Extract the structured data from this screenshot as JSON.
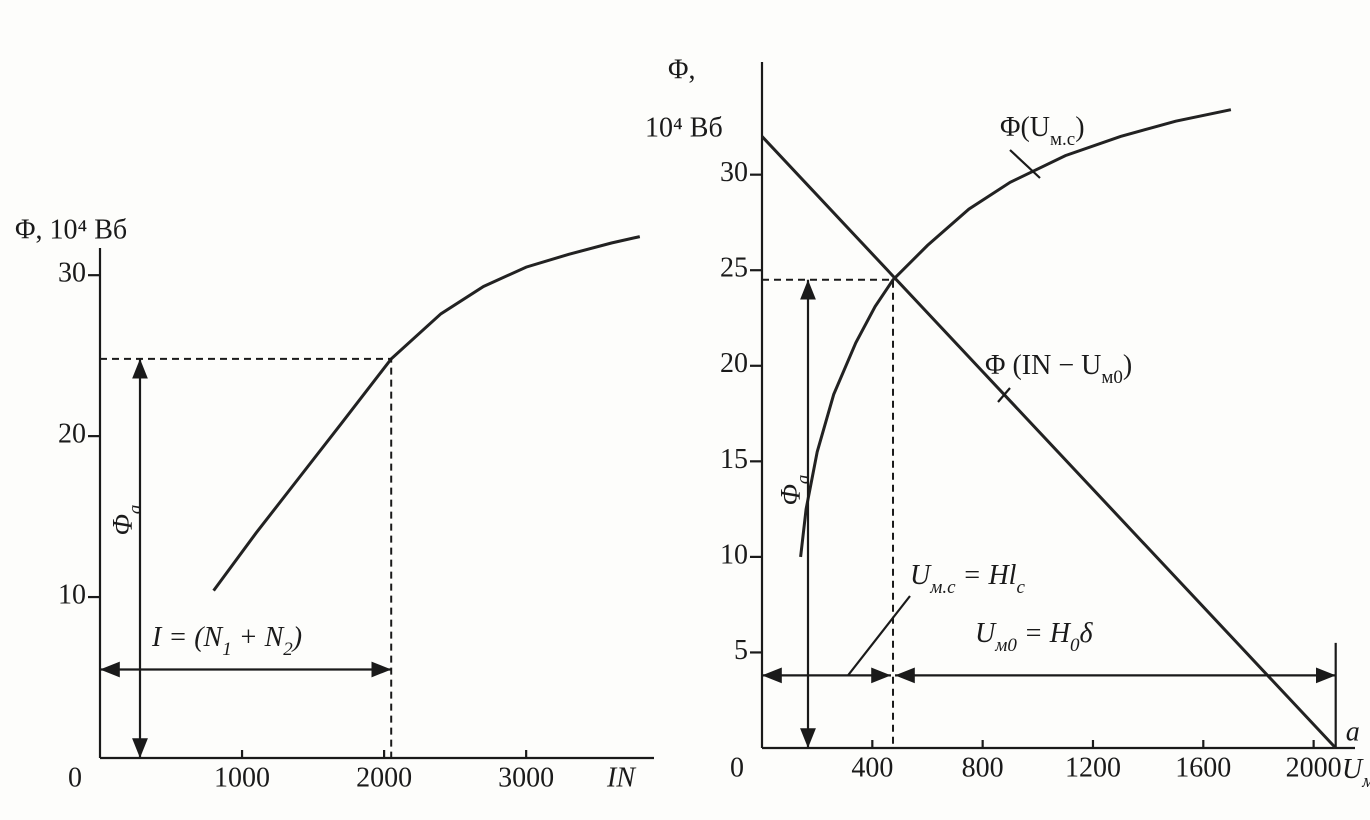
{
  "chart_data": [
    {
      "type": "line",
      "ylabel": "Φ, 10⁴ Вб",
      "xlabel": "IN",
      "xlim": [
        0,
        3900
      ],
      "xticks": [
        0,
        1000,
        2000,
        3000
      ],
      "ylim": [
        0,
        32
      ],
      "yticks": [
        10,
        20,
        30
      ],
      "series": [
        {
          "color": "#222222",
          "x": [
            800,
            1100,
            1400,
            1700,
            2050,
            2400,
            2700,
            3000,
            3300,
            3600,
            3800
          ],
          "values": [
            10.4,
            14,
            17.4,
            20.8,
            24.8,
            27.6,
            29.3,
            30.5,
            31.3,
            32,
            32.4
          ]
        }
      ],
      "operating_point": {
        "x": 2050,
        "y": 24.8
      },
      "annotations": {
        "flux_label": [
          {
            "text": "Φ"
          },
          {
            "text": "a",
            "sub": true
          }
        ],
        "mmf_label": [
          {
            "text": "I = (N"
          },
          {
            "text": "1",
            "sub": true
          },
          {
            "text": " + N"
          },
          {
            "text": "2",
            "sub": true
          },
          {
            "text": ")"
          }
        ]
      }
    },
    {
      "type": "line",
      "ylabel": [
        "Φ,",
        "10⁴ Вб"
      ],
      "xlabel": [
        {
          "text": "U"
        },
        {
          "text": "м",
          "sub": true
        }
      ],
      "xlim": [
        0,
        2150
      ],
      "xticks": [
        0,
        400,
        800,
        1200,
        1600,
        2000
      ],
      "ylim": [
        0,
        36
      ],
      "yticks": [
        5,
        10,
        15,
        20,
        25,
        30
      ],
      "series": [
        {
          "name": [
            {
              "text": "Φ(U"
            },
            {
              "text": "м.с",
              "sub": true
            },
            {
              "text": ")"
            }
          ],
          "color": "#222222",
          "x": [
            140,
            160,
            200,
            260,
            340,
            410,
            475,
            600,
            750,
            900,
            1100,
            1300,
            1500,
            1700
          ],
          "values": [
            10,
            12.5,
            15.5,
            18.5,
            21.2,
            23.1,
            24.5,
            26.3,
            28.2,
            29.6,
            31,
            32,
            32.8,
            33.4
          ]
        },
        {
          "name": [
            {
              "text": "Φ (IN − U"
            },
            {
              "text": "м0",
              "sub": true
            },
            {
              "text": ")"
            }
          ],
          "color": "#222222",
          "x": [
            0,
            2080
          ],
          "values": [
            32,
            0
          ]
        }
      ],
      "operating_point": {
        "x": 475,
        "y": 24.5
      },
      "point_label": "a",
      "annotations": {
        "flux_label": [
          {
            "text": "Φ"
          },
          {
            "text": "a",
            "sub": true
          }
        ],
        "core_label": [
          {
            "text": "U"
          },
          {
            "text": "м.с",
            "sub": true
          },
          {
            "text": " = Hl"
          },
          {
            "text": "c",
            "sub": true
          }
        ],
        "gap_label": [
          {
            "text": "U"
          },
          {
            "text": "м0",
            "sub": true
          },
          {
            "text": " = H"
          },
          {
            "text": "0",
            "sub": true
          },
          {
            "text": "δ"
          }
        ]
      }
    }
  ]
}
